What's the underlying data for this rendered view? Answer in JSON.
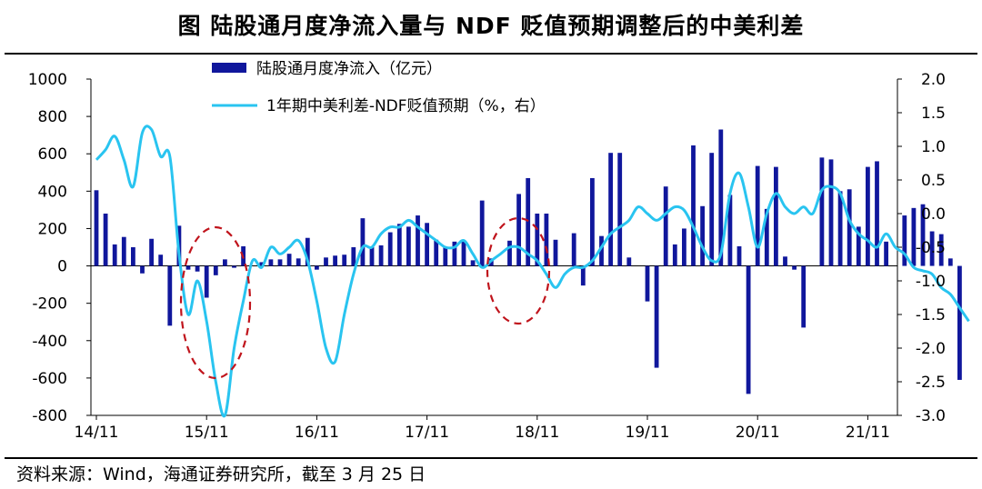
{
  "title": "图  陆股通月度净流入量与 NDF 贬值预期调整后的中美利差",
  "source": "资料来源：Wind，海通证券研究所，截至 3 月 25 日",
  "colors": {
    "bar": "#10179C",
    "line": "#29C4F0",
    "circle": "#C0141C",
    "axis": "#000000"
  },
  "chart_data": {
    "type": "bar+line",
    "title": "陆股通月度净流入量与 NDF 贬值预期调整后的中美利差",
    "x_tick_labels": [
      "14/11",
      "15/11",
      "16/11",
      "17/11",
      "18/11",
      "19/11",
      "20/11",
      "21/11"
    ],
    "left_axis": {
      "range": [
        -800,
        1000
      ],
      "ticks": [
        "1000",
        "800",
        "600",
        "400",
        "200",
        "0",
        "-200",
        "-400",
        "-600",
        "-800"
      ]
    },
    "right_axis": {
      "range": [
        -3.0,
        2.0
      ],
      "ticks": [
        "2.0",
        "1.5",
        "1.0",
        "0.5",
        "0.0",
        "-0.5",
        "-1.0",
        "-1.5",
        "-2.0",
        "-2.5",
        "-3.0"
      ]
    },
    "series": [
      {
        "name": "陆股通月度净流入（亿元）",
        "type": "bar",
        "axis": "left",
        "start": "2014-11",
        "values": [
          405,
          280,
          115,
          155,
          100,
          -40,
          145,
          60,
          -320,
          215,
          -20,
          -30,
          -170,
          -50,
          35,
          -10,
          105,
          0,
          20,
          35,
          35,
          65,
          40,
          150,
          -20,
          45,
          55,
          60,
          100,
          255,
          100,
          110,
          180,
          225,
          210,
          270,
          230,
          140,
          100,
          130,
          130,
          30,
          350,
          40,
          0,
          135,
          385,
          470,
          280,
          280,
          140,
          0,
          175,
          -105,
          470,
          160,
          605,
          605,
          45,
          0,
          -190,
          -545,
          425,
          115,
          200,
          645,
          320,
          605,
          730,
          380,
          105,
          -685,
          535,
          305,
          530,
          50,
          -20,
          -330,
          0,
          580,
          570,
          400,
          410,
          210,
          530,
          560,
          130,
          0,
          270,
          310,
          330,
          185,
          170,
          40,
          -610
        ]
      },
      {
        "name": "1年期中美利差-NDF贬值预期（%，右）",
        "type": "line",
        "axis": "right",
        "start": "2014-11",
        "values": [
          0.8,
          0.95,
          1.15,
          0.8,
          0.4,
          1.2,
          1.25,
          0.85,
          0.85,
          -0.6,
          -1.5,
          -1.0,
          -1.6,
          -2.5,
          -3.0,
          -2.0,
          -1.3,
          -0.7,
          -0.8,
          -0.5,
          -0.6,
          -0.5,
          -0.4,
          -0.7,
          -1.3,
          -2.0,
          -2.2,
          -1.5,
          -0.9,
          -0.5,
          -0.5,
          -0.3,
          -0.2,
          -0.2,
          -0.1,
          -0.2,
          -0.3,
          -0.4,
          -0.5,
          -0.5,
          -0.4,
          -0.6,
          -0.8,
          -0.7,
          -0.6,
          -0.5,
          -0.5,
          -0.6,
          -0.7,
          -0.9,
          -1.1,
          -0.9,
          -0.8,
          -0.8,
          -0.7,
          -0.5,
          -0.3,
          -0.2,
          -0.1,
          0.1,
          0.0,
          -0.1,
          0.0,
          0.1,
          0.05,
          -0.2,
          -0.5,
          -0.7,
          -0.6,
          0.3,
          0.6,
          0.1,
          -0.5,
          0.0,
          0.3,
          0.1,
          0.0,
          0.1,
          0.0,
          0.35,
          0.4,
          0.3,
          -0.1,
          -0.3,
          -0.4,
          -0.5,
          -0.3,
          -0.5,
          -0.6,
          -0.8,
          -0.85,
          -0.9,
          -1.1,
          -1.2,
          -1.4,
          -1.6
        ]
      }
    ],
    "annotations": [
      "dashed-circle around 15/11 trough",
      "dashed-circle around 18/11 dip"
    ]
  }
}
